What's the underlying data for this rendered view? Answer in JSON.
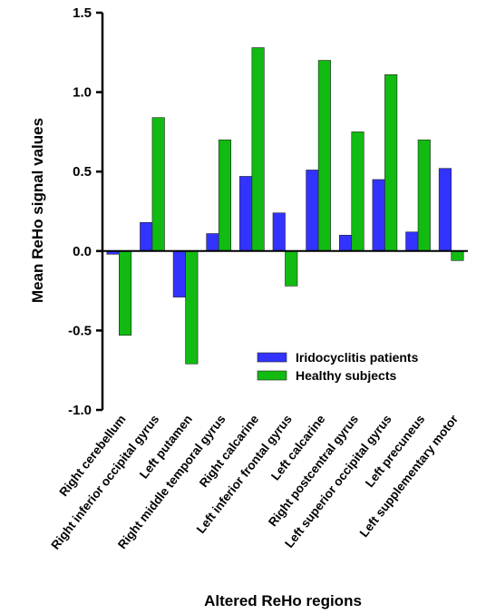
{
  "chart_data": {
    "type": "bar",
    "title": "",
    "xlabel": "Altered ReHo regions",
    "ylabel": "Mean ReHo signal values",
    "ylim": [
      -1.0,
      1.5
    ],
    "yticks": [
      "-1.0",
      "-0.5",
      "0.0",
      "0.5",
      "1.0",
      "1.5"
    ],
    "ytick_values": [
      -1.0,
      -0.5,
      0.0,
      0.5,
      1.0,
      1.5
    ],
    "grid": false,
    "legend_position": "lower-right",
    "categories": [
      "Right cerebellum",
      "Right inferior occipital gyrus",
      "Left putamen",
      "Right middle temporal gyrus",
      "Right calcarine",
      "Left inferior frontal gyrus",
      "Left calcarine",
      "Right postcentral gyrus",
      "Left superior occipital gyrus",
      "Left precuneus",
      "Left supplementary motor"
    ],
    "series": [
      {
        "name": "Iridocyclitis patients",
        "color": "#3333ff",
        "values": [
          -0.02,
          0.18,
          -0.29,
          0.11,
          0.47,
          0.24,
          0.51,
          0.1,
          0.45,
          0.12,
          0.52
        ]
      },
      {
        "name": "Healthy subjects",
        "color": "#11bb11",
        "values": [
          -0.53,
          0.84,
          -0.71,
          0.7,
          1.28,
          -0.22,
          1.2,
          0.75,
          1.11,
          0.7,
          -0.06
        ]
      }
    ]
  }
}
